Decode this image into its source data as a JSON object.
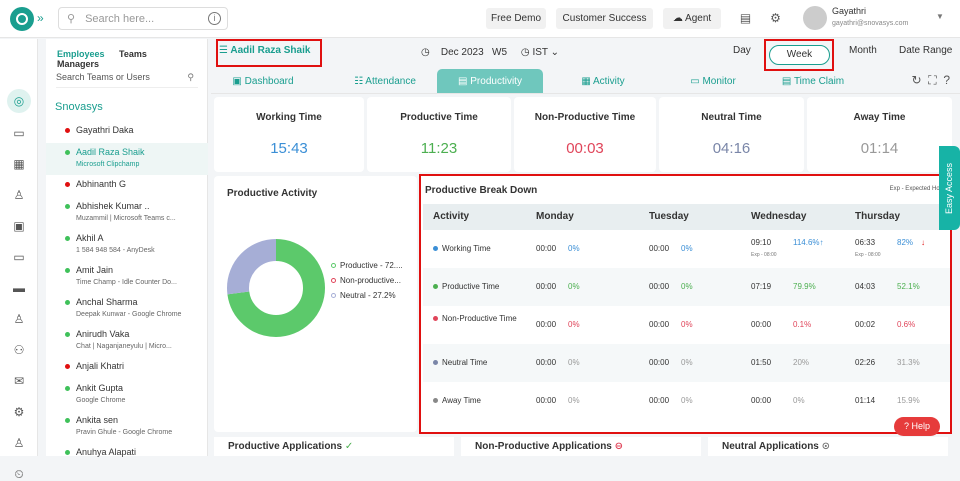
{
  "topbar": {
    "search_placeholder": "Search here...",
    "free_demo": "Free Demo",
    "customer_success": "Customer Success",
    "agent": "Agent",
    "user_name": "Gayathri",
    "user_email": "gayathri@snovasys.com"
  },
  "panel": {
    "tabs": [
      "Employees",
      "Teams",
      "Managers"
    ],
    "search_placeholder": "Search Teams or Users",
    "org": "Snovasys",
    "employees": [
      {
        "name": "Gayathri Daka",
        "sub": "",
        "status": "red"
      },
      {
        "name": "Aadil Raza Shaik",
        "sub": "Microsoft Clipchamp",
        "status": "green",
        "selected": true
      },
      {
        "name": "Abhinanth G",
        "sub": "",
        "status": "red"
      },
      {
        "name": "Abhishek Kumar ..",
        "sub": "Muzammil | Microsoft Teams c...",
        "status": "green"
      },
      {
        "name": "Akhil A",
        "sub": "1 584 948 584 - AnyDesk",
        "status": "green"
      },
      {
        "name": "Amit Jain",
        "sub": "Time Champ - Idle Counter Do...",
        "status": "green"
      },
      {
        "name": "Anchal Sharma",
        "sub": "Deepak Kunwar - Google Chrome",
        "status": "green"
      },
      {
        "name": "Anirudh Vaka",
        "sub": "Chat | Naganjaneyulu | Micro...",
        "status": "green"
      },
      {
        "name": "Anjali Khatri",
        "sub": "",
        "status": "red"
      },
      {
        "name": "Ankit Gupta",
        "sub": "Google Chrome",
        "status": "green"
      },
      {
        "name": "Ankita sen",
        "sub": "Pravin Ghule - Google Chrome",
        "status": "green"
      },
      {
        "name": "Anuhya Alapati",
        "sub": "",
        "status": "green"
      }
    ]
  },
  "header": {
    "selected_user": "Aadil Raza Shaik",
    "period": "Dec 2023",
    "week": "W5",
    "timezone": "IST",
    "views": [
      "Day",
      "Week",
      "Month",
      "Date Range"
    ]
  },
  "tabs": [
    "Dashboard",
    "Attendance",
    "Productivity",
    "Activity",
    "Monitor",
    "Time Claim"
  ],
  "kpis": [
    {
      "label": "Working Time",
      "value": "15:43",
      "color": "#3b8fd6"
    },
    {
      "label": "Productive Time",
      "value": "11:23",
      "color": "#4caf50"
    },
    {
      "label": "Non-Productive Time",
      "value": "00:03",
      "color": "#e0455a"
    },
    {
      "label": "Neutral Time",
      "value": "04:16",
      "color": "#7a86a8"
    },
    {
      "label": "Away Time",
      "value": "01:14",
      "color": "#999999"
    }
  ],
  "productive_activity": {
    "title": "Productive Activity",
    "legend": [
      "Productive - 72....",
      "Non-productive...",
      "Neutral - 27.2%"
    ]
  },
  "chart_data": {
    "type": "pie",
    "title": "Productive Activity",
    "categories": [
      "Productive",
      "Non-productive",
      "Neutral"
    ],
    "values": [
      72.8,
      0.0,
      27.2
    ],
    "colors": [
      "#5cc96b",
      "#e0455a",
      "#a6aed6"
    ]
  },
  "breakdown": {
    "title": "Productive Break Down",
    "exp_note": "Exp - Expected Hours",
    "columns": [
      "Activity",
      "Monday",
      "Tuesday",
      "Wednesday",
      "Thursday"
    ],
    "rows": [
      {
        "activity": "Working Time",
        "dot": "#3b8fd6",
        "mon": "00:00",
        "mon_pct": "0%",
        "tue": "00:00",
        "tue_pct": "0%",
        "wed": "09:10",
        "wed_pct": "114.6%↑",
        "wed_exp": "Exp - 08:00",
        "thu": "06:33",
        "thu_pct": "82%",
        "thu_exp": "Exp - 08:00",
        "thu_arrow": "↓",
        "pct_color": "#3b8fd6"
      },
      {
        "activity": "Productive Time",
        "dot": "#4caf50",
        "mon": "00:00",
        "mon_pct": "0%",
        "tue": "00:00",
        "tue_pct": "0%",
        "wed": "07:19",
        "wed_pct": "79.9%",
        "thu": "04:03",
        "thu_pct": "52.1%",
        "pct_color": "#4caf50"
      },
      {
        "activity": "Non-Productive Time",
        "dot": "#e0455a",
        "mon": "00:00",
        "mon_pct": "0%",
        "tue": "00:00",
        "tue_pct": "0%",
        "wed": "00:00",
        "wed_pct": "0.1%",
        "thu": "00:02",
        "thu_pct": "0.6%",
        "pct_color": "#e0455a"
      },
      {
        "activity": "Neutral Time",
        "dot": "#7a86a8",
        "mon": "00:00",
        "mon_pct": "0%",
        "tue": "00:00",
        "tue_pct": "0%",
        "wed": "01:50",
        "wed_pct": "20%",
        "thu": "02:26",
        "thu_pct": "31.3%",
        "pct_color": "#999999"
      },
      {
        "activity": "Away Time",
        "dot": "#888888",
        "mon": "00:00",
        "mon_pct": "0%",
        "tue": "00:00",
        "tue_pct": "0%",
        "wed": "00:00",
        "wed_pct": "0%",
        "thu": "01:14",
        "thu_pct": "15.9%",
        "pct_color": "#999999"
      }
    ]
  },
  "bottom": [
    "Productive Applications",
    "Non-Productive Applications",
    "Neutral Applications"
  ],
  "help": "Help",
  "easy_access": "Easy Access"
}
